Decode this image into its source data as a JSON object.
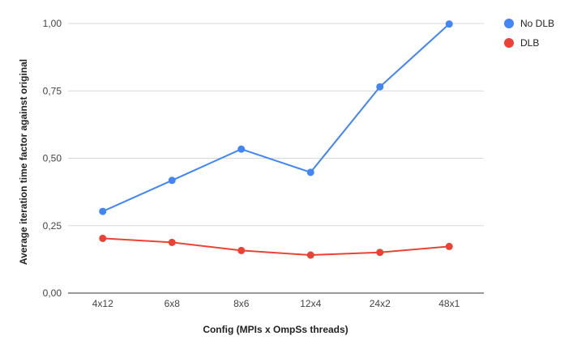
{
  "chart_data": {
    "type": "line",
    "title": "",
    "xlabel": "Config (MPIs x OmpSs threads)",
    "ylabel": "Average iteration time factor against original",
    "categories": [
      "4x12",
      "6x8",
      "8x6",
      "12x4",
      "24x2",
      "48x1"
    ],
    "ylim": [
      0,
      1
    ],
    "yticks": [
      "0,00",
      "0,25",
      "0,50",
      "0,75",
      "1,00"
    ],
    "grid": true,
    "legend_position": "top-right",
    "series": [
      {
        "name": "No DLB",
        "color": "#4285F4",
        "values": [
          0.303,
          0.418,
          0.534,
          0.448,
          0.765,
          0.998
        ]
      },
      {
        "name": "DLB",
        "color": "#EA4335",
        "values": [
          0.203,
          0.188,
          0.158,
          0.141,
          0.151,
          0.173
        ]
      }
    ]
  }
}
